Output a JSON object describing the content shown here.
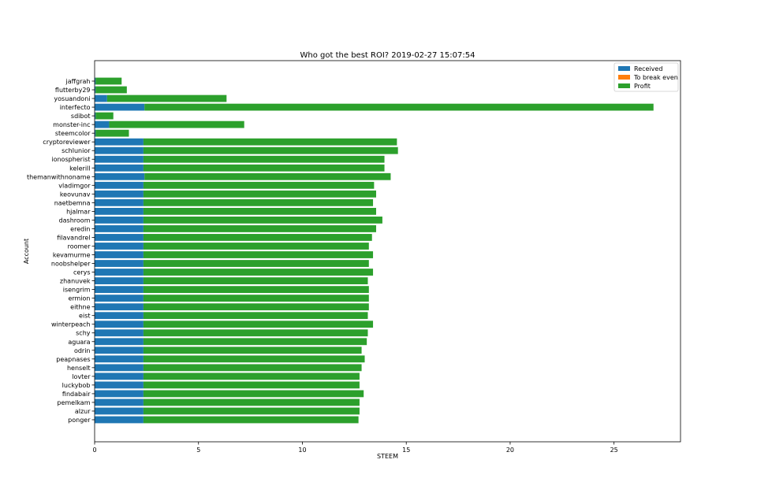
{
  "chart_data": {
    "type": "bar",
    "orientation": "horizontal",
    "stacked": true,
    "title": "Who got the best ROI? 2019-02-27 15:07:54",
    "xlabel": "STEEM",
    "ylabel": "Account",
    "xlim": [
      0,
      28.2
    ],
    "xticks": [
      0,
      5,
      10,
      15,
      20,
      25
    ],
    "grid": false,
    "legend_position": "top-right",
    "categories": [
      "jaffgrah",
      "flutterby29",
      "yosuandoni",
      "interfecto",
      "sdibot",
      "monster-inc",
      "steemcolor",
      "cryptoreviewer",
      "schlunior",
      "ionospherist",
      "kelerill",
      "themanwithnoname",
      "vladimgor",
      "keovunav",
      "naetbemna",
      "hjalmar",
      "dashroom",
      "eredin",
      "filavandrel",
      "roomer",
      "kevamurme",
      "noobshelper",
      "cerys",
      "zhanuvek",
      "isengrim",
      "ermion",
      "eithne",
      "eist",
      "winterpeach",
      "schy",
      "aguara",
      "odrin",
      "peapnases",
      "henselt",
      "lovter",
      "luckybob",
      "findabair",
      "pemelkam",
      "alzur",
      "ponger"
    ],
    "series": [
      {
        "name": "Received",
        "color": "#1f77b4",
        "values": [
          0.05,
          0.05,
          0.6,
          2.4,
          0.05,
          0.7,
          0.05,
          2.35,
          2.35,
          2.35,
          2.35,
          2.4,
          2.35,
          2.35,
          2.35,
          2.35,
          2.35,
          2.35,
          2.35,
          2.35,
          2.35,
          2.35,
          2.35,
          2.35,
          2.35,
          2.35,
          2.35,
          2.35,
          2.35,
          2.35,
          2.35,
          2.35,
          2.35,
          2.35,
          2.35,
          2.35,
          2.35,
          2.35,
          2.35,
          2.35
        ]
      },
      {
        "name": "To break even",
        "color": "#ff7f0e",
        "values": [
          0,
          0,
          0,
          0,
          0,
          0,
          0,
          0,
          0,
          0,
          0,
          0,
          0,
          0,
          0,
          0,
          0,
          0,
          0,
          0,
          0,
          0,
          0,
          0,
          0,
          0,
          0,
          0,
          0,
          0,
          0,
          0,
          0,
          0,
          0,
          0,
          0,
          0,
          0,
          0
        ]
      },
      {
        "name": "Profit",
        "color": "#2ca02c",
        "values": [
          1.25,
          1.5,
          5.75,
          24.5,
          0.85,
          6.5,
          1.6,
          12.2,
          12.25,
          11.6,
          11.6,
          11.85,
          11.1,
          11.2,
          11.05,
          11.2,
          11.5,
          11.2,
          11.0,
          10.85,
          11.05,
          10.85,
          11.05,
          10.8,
          10.85,
          10.85,
          10.85,
          10.8,
          11.05,
          10.8,
          10.75,
          10.5,
          10.65,
          10.5,
          10.4,
          10.4,
          10.6,
          10.4,
          10.4,
          10.35
        ]
      }
    ]
  }
}
